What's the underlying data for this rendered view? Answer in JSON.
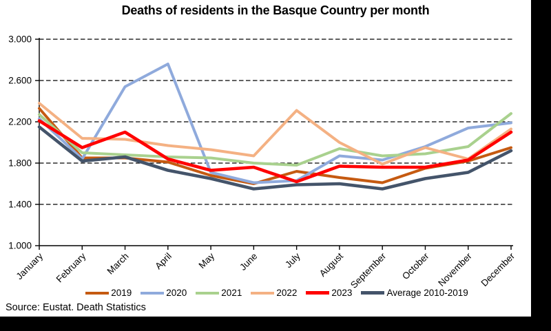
{
  "source": "Source: Eustat. Death Statistics",
  "chart_data": {
    "type": "line",
    "title": "Deaths of residents in the Basque Country per month",
    "xlabel": "",
    "ylabel": "",
    "ylim": [
      1000,
      3000
    ],
    "ytick_step": 400,
    "yticks": [
      "1.000",
      "1.400",
      "1.800",
      "2.200",
      "2.600",
      "3.000"
    ],
    "grid": "horizontal-dashed",
    "legend_position": "bottom",
    "categories": [
      "January",
      "February",
      "March",
      "April",
      "May",
      "June",
      "July",
      "August",
      "September",
      "October",
      "November",
      "December"
    ],
    "series": [
      {
        "name": "2019",
        "color": "#C55A11",
        "values": [
          2330,
          1850,
          1850,
          1810,
          1680,
          1600,
          1720,
          1660,
          1610,
          1750,
          1820,
          1950
        ]
      },
      {
        "name": "2020",
        "color": "#8FAADC",
        "values": [
          2230,
          1840,
          2540,
          2760,
          1710,
          1610,
          1630,
          1870,
          1830,
          1960,
          2140,
          2190
        ]
      },
      {
        "name": "2021",
        "color": "#A9D18E",
        "values": [
          2270,
          1900,
          1880,
          1860,
          1850,
          1800,
          1780,
          1940,
          1870,
          1890,
          1960,
          2280
        ]
      },
      {
        "name": "2022",
        "color": "#F4B183",
        "values": [
          2380,
          2040,
          2030,
          1970,
          1930,
          1870,
          2310,
          2000,
          1790,
          1950,
          1840,
          2130
        ]
      },
      {
        "name": "2023",
        "color": "#FF0000",
        "values": [
          2210,
          1950,
          2100,
          1840,
          1730,
          1760,
          1620,
          1770,
          1760,
          1760,
          1830,
          2100
        ]
      },
      {
        "name": "Average 2010-2019",
        "color": "#44546A",
        "values": [
          2150,
          1820,
          1860,
          1730,
          1650,
          1550,
          1590,
          1600,
          1550,
          1650,
          1710,
          1920
        ]
      }
    ]
  }
}
